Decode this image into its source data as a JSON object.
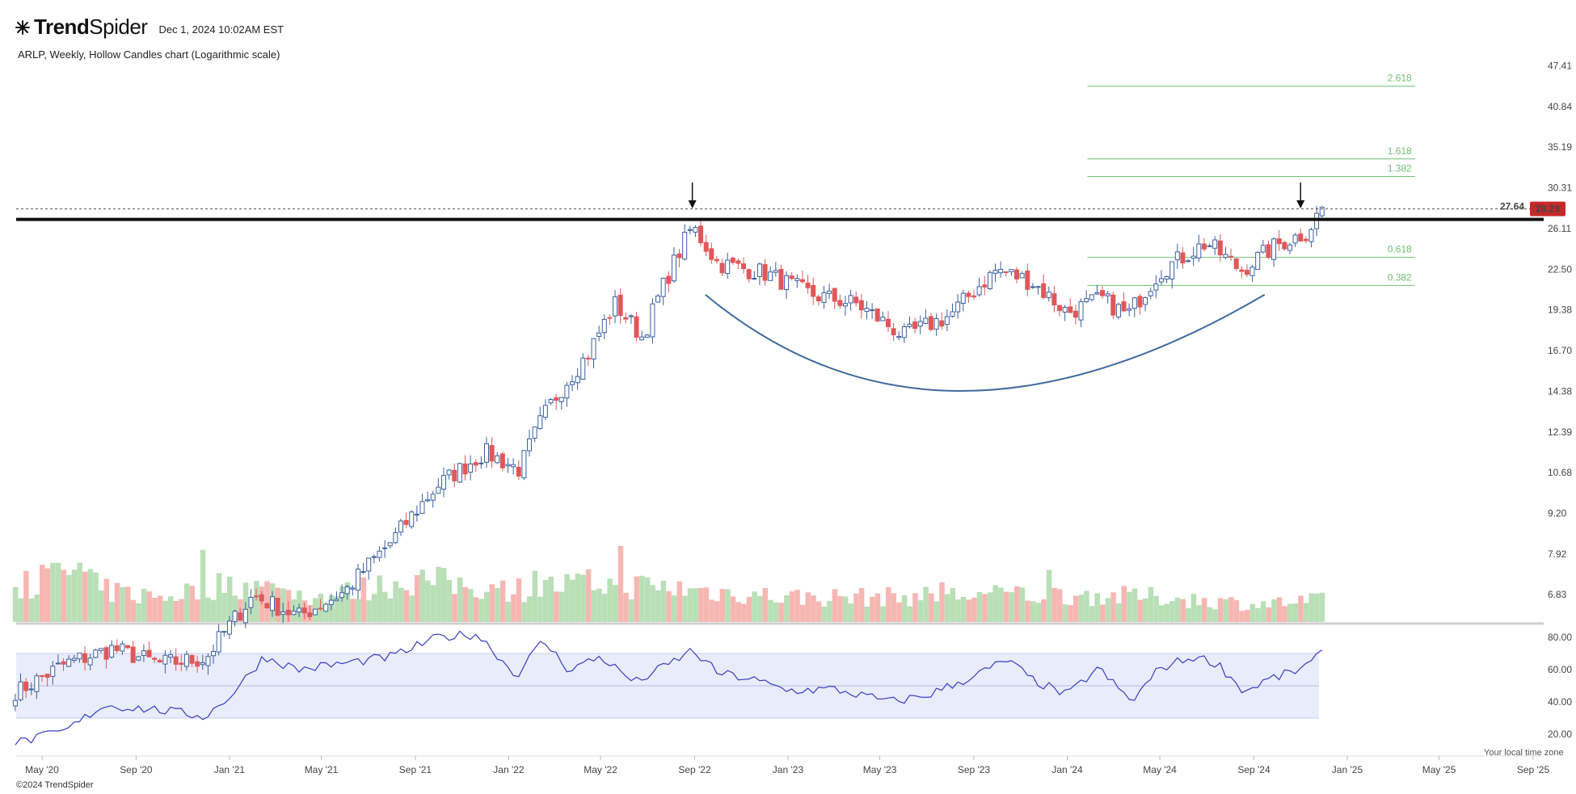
{
  "header": {
    "brand": "TrendSpider",
    "datetime": "Dec 1, 2024 10:02AM EST",
    "subtitle": "ARLP, Weekly, Hollow Candles chart (Logarithmic scale)",
    "copyright": "©2024 TrendSpider",
    "timezone_note": "Your local time zone"
  },
  "chart_data": {
    "type": "candlestick",
    "symbol": "ARLP",
    "interval": "Weekly",
    "scale": "logarithmic",
    "y_ticks": [
      "47.41",
      "40.84",
      "35.19",
      "30.31",
      "26.11",
      "22.50",
      "19.38",
      "16.70",
      "14.38",
      "12.39",
      "10.68",
      "9.20",
      "7.92",
      "6.83"
    ],
    "x_ticks": [
      "May '20",
      "Sep '20",
      "Jan '21",
      "May '21",
      "Sep '21",
      "Jan '22",
      "May '22",
      "Sep '22",
      "Jan '23",
      "May '23",
      "Sep '23",
      "Jan '24",
      "May '24",
      "Sep '24",
      "Jan '25",
      "May '25",
      "Sep '25"
    ],
    "resistance_level": "27.64",
    "last_price": "28.23",
    "fib_levels": [
      "2.618",
      "1.618",
      "1.382",
      "0.618",
      "0.382"
    ],
    "fib_values": [
      44.0,
      33.7,
      31.6,
      23.5,
      21.2
    ],
    "close_anchors": [
      [
        "2020-04-01",
        4.8
      ],
      [
        "2020-06-01",
        5.3
      ],
      [
        "2020-08-01",
        5.6
      ],
      [
        "2020-10-01",
        5.3
      ],
      [
        "2020-12-01",
        5.4
      ],
      [
        "2021-02-01",
        6.8
      ],
      [
        "2021-04-01",
        6.3
      ],
      [
        "2021-06-01",
        6.9
      ],
      [
        "2021-08-01",
        8.3
      ],
      [
        "2021-10-01",
        10.2
      ],
      [
        "2021-12-01",
        11.5
      ],
      [
        "2022-01-15",
        10.8
      ],
      [
        "2022-02-15",
        13.1
      ],
      [
        "2022-03-15",
        14.8
      ],
      [
        "2022-04-15",
        16.5
      ],
      [
        "2022-05-20",
        19.8
      ],
      [
        "2022-06-25",
        17.5
      ],
      [
        "2022-08-01",
        22.5
      ],
      [
        "2022-08-29",
        26.3
      ],
      [
        "2022-10-01",
        23.0
      ],
      [
        "2022-12-01",
        22.2
      ],
      [
        "2023-02-01",
        20.5
      ],
      [
        "2023-04-01",
        19.8
      ],
      [
        "2023-06-01",
        17.6
      ],
      [
        "2023-08-01",
        19.0
      ],
      [
        "2023-10-01",
        22.5
      ],
      [
        "2023-11-15",
        21.5
      ],
      [
        "2024-01-01",
        19.2
      ],
      [
        "2024-02-15",
        20.2
      ],
      [
        "2024-03-20",
        19.0
      ],
      [
        "2024-05-01",
        22.3
      ],
      [
        "2024-07-01",
        24.8
      ],
      [
        "2024-08-15",
        22.4
      ],
      [
        "2024-10-01",
        24.6
      ],
      [
        "2024-11-10",
        25.8
      ],
      [
        "2024-11-29",
        28.23
      ]
    ],
    "volume_profile": [
      [
        "2020-04-01",
        0.5
      ],
      [
        "2020-06-15",
        0.75
      ],
      [
        "2020-07-15",
        0.45
      ],
      [
        "2020-10-01",
        0.35
      ],
      [
        "2021-01-01",
        0.55
      ],
      [
        "2021-05-01",
        0.35
      ],
      [
        "2021-09-01",
        0.6
      ],
      [
        "2022-01-01",
        0.45
      ],
      [
        "2022-05-01",
        0.55
      ],
      [
        "2022-09-01",
        0.45
      ],
      [
        "2023-01-01",
        0.35
      ],
      [
        "2023-05-01",
        0.35
      ],
      [
        "2023-09-01",
        0.38
      ],
      [
        "2024-01-01",
        0.38
      ],
      [
        "2024-05-01",
        0.35
      ],
      [
        "2024-09-01",
        0.25
      ],
      [
        "2024-11-29",
        0.3
      ]
    ],
    "rsi_ticks": [
      "80.00",
      "60.00",
      "40.00",
      "20.00"
    ],
    "rsi_band": [
      70,
      30
    ],
    "rsi_midline": 50,
    "rsi_anchors": [
      [
        "2020-04-01",
        15
      ],
      [
        "2020-06-01",
        22
      ],
      [
        "2020-07-20",
        38
      ],
      [
        "2020-10-01",
        35
      ],
      [
        "2020-12-01",
        31
      ],
      [
        "2021-01-05",
        45
      ],
      [
        "2021-02-15",
        68
      ],
      [
        "2021-04-01",
        60
      ],
      [
        "2021-06-01",
        64
      ],
      [
        "2021-08-01",
        68
      ],
      [
        "2021-10-01",
        80
      ],
      [
        "2021-11-20",
        82
      ],
      [
        "2021-12-10",
        73
      ],
      [
        "2022-01-10",
        56
      ],
      [
        "2022-02-15",
        78
      ],
      [
        "2022-03-20",
        60
      ],
      [
        "2022-05-01",
        68
      ],
      [
        "2022-06-15",
        52
      ],
      [
        "2022-08-01",
        64
      ],
      [
        "2022-08-29",
        72
      ],
      [
        "2022-10-01",
        58
      ],
      [
        "2022-11-15",
        54
      ],
      [
        "2023-01-01",
        47
      ],
      [
        "2023-03-01",
        48
      ],
      [
        "2023-05-15",
        40
      ],
      [
        "2023-07-01",
        44
      ],
      [
        "2023-09-01",
        56
      ],
      [
        "2023-10-15",
        66
      ],
      [
        "2023-11-15",
        54
      ],
      [
        "2024-01-01",
        44
      ],
      [
        "2024-02-10",
        61
      ],
      [
        "2024-03-25",
        40
      ],
      [
        "2024-05-01",
        61
      ],
      [
        "2024-06-15",
        68
      ],
      [
        "2024-07-15",
        64
      ],
      [
        "2024-08-20",
        46
      ],
      [
        "2024-09-15",
        53
      ],
      [
        "2024-10-25",
        59
      ],
      [
        "2024-11-15",
        64
      ],
      [
        "2024-11-29",
        70
      ]
    ],
    "annotations": {
      "arrow_dates": [
        "2022-08-29",
        "2024-11-01"
      ],
      "cup_curve": [
        [
          "2022-09-15",
          20.5
        ],
        [
          "2023-08-15",
          14.4
        ],
        [
          "2024-09-15",
          20.5
        ]
      ]
    }
  },
  "colors": {
    "up": "#3a5fa0",
    "down": "#e15759",
    "vol_up": "#b9dfb6",
    "vol_down": "#f6b7b3",
    "rsi_line": "#3a3fbf",
    "rsi_band": "#e9ecfb",
    "fib": "#6fbf73",
    "cup": "#3f6a9e",
    "resistance": "#111111",
    "last_price_bg": "#c62828"
  }
}
